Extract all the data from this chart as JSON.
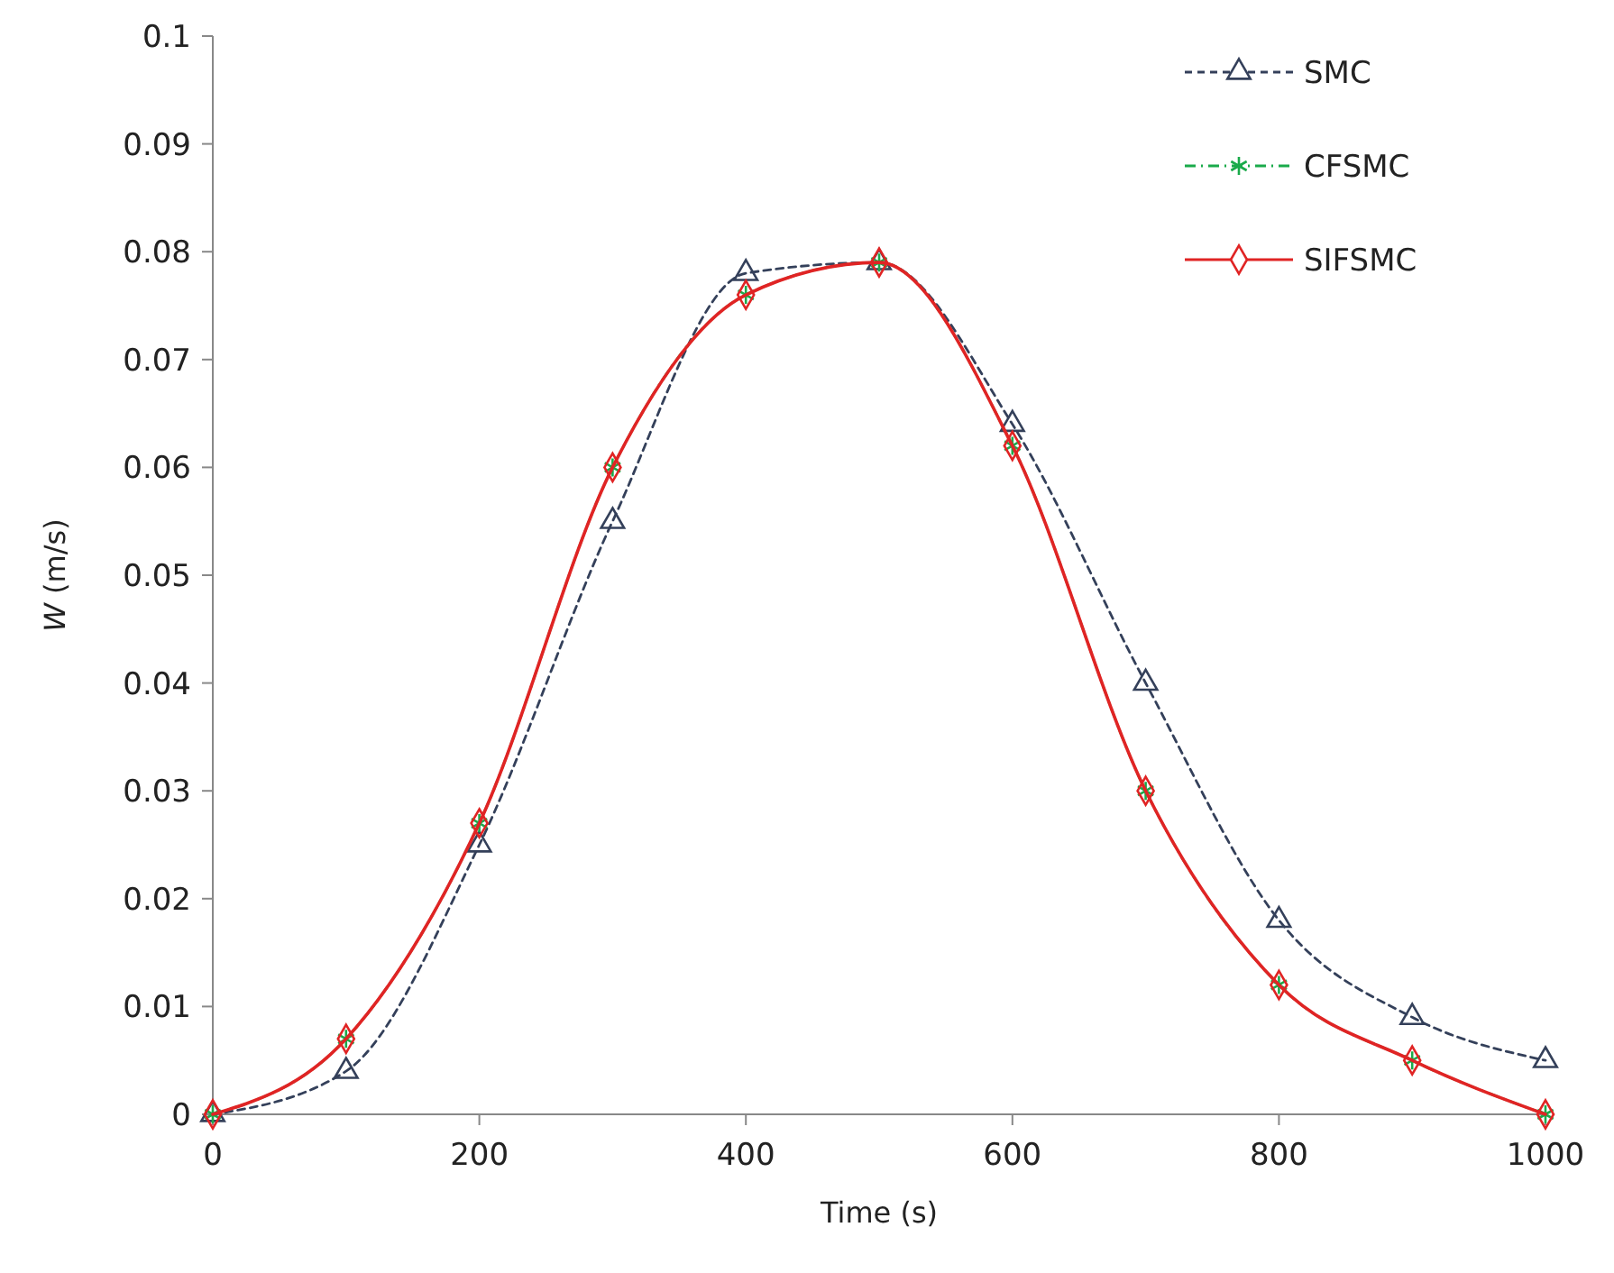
{
  "chart_data": {
    "type": "line",
    "xlabel": "Time (s)",
    "ylabel": "W (m/s)",
    "x": [
      0,
      100,
      200,
      300,
      400,
      500,
      600,
      700,
      800,
      900,
      1000
    ],
    "series": [
      {
        "name": "SMC",
        "color": "#34405a",
        "marker": "triangle",
        "line_style": "dashed",
        "values": [
          0,
          0.004,
          0.025,
          0.055,
          0.078,
          0.079,
          0.064,
          0.04,
          0.018,
          0.009,
          0.005
        ]
      },
      {
        "name": "CFSMC",
        "color": "#1aaa4a",
        "marker": "cross",
        "line_style": "dashdot",
        "values": [
          0,
          0.007,
          0.027,
          0.06,
          0.076,
          0.079,
          0.062,
          0.03,
          0.012,
          0.005,
          0
        ]
      },
      {
        "name": "SIFSMC",
        "color": "#e02424",
        "marker": "diamond",
        "line_style": "solid",
        "values": [
          0,
          0.007,
          0.027,
          0.06,
          0.076,
          0.079,
          0.062,
          0.03,
          0.012,
          0.005,
          0
        ]
      }
    ],
    "xlim": [
      0,
      1000
    ],
    "xticks": [
      0,
      200,
      400,
      600,
      800,
      1000
    ],
    "ylim": [
      0,
      0.1
    ],
    "yticks": [
      0,
      0.01,
      0.02,
      0.03,
      0.04,
      0.05,
      0.06,
      0.07,
      0.08,
      0.09,
      0.1
    ],
    "grid": false,
    "legend": "top right"
  }
}
